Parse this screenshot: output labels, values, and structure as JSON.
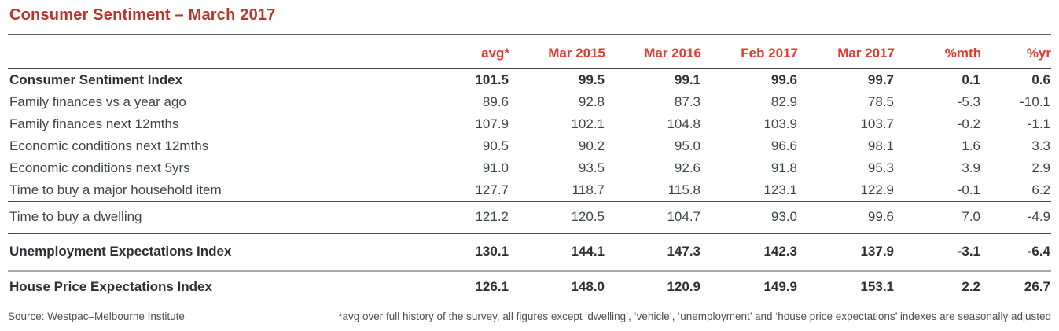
{
  "title": "Consumer Sentiment – March 2017",
  "table": {
    "column_headers": [
      "avg*",
      "Mar 2015",
      "Mar 2016",
      "Feb 2017",
      "Mar 2017",
      "%mth",
      "%yr"
    ],
    "groups": [
      {
        "divider_before": "none",
        "rows": [
          {
            "label": "Consumer Sentiment Index",
            "bold": true,
            "values": [
              "101.5",
              "99.5",
              "99.1",
              "99.6",
              "99.7",
              "0.1",
              "0.6"
            ]
          },
          {
            "label": "Family finances vs a year ago",
            "bold": false,
            "values": [
              "89.6",
              "92.8",
              "87.3",
              "82.9",
              "78.5",
              "-5.3",
              "-10.1"
            ]
          },
          {
            "label": "Family finances next 12mths",
            "bold": false,
            "values": [
              "107.9",
              "102.1",
              "104.8",
              "103.9",
              "103.7",
              "-0.2",
              "-1.1"
            ]
          },
          {
            "label": "Economic conditions next 12mths",
            "bold": false,
            "values": [
              "90.5",
              "90.2",
              "95.0",
              "96.6",
              "98.1",
              "1.6",
              "3.3"
            ]
          },
          {
            "label": "Economic conditions next 5yrs",
            "bold": false,
            "values": [
              "91.0",
              "93.5",
              "92.6",
              "91.8",
              "95.3",
              "3.9",
              "2.9"
            ]
          },
          {
            "label": "Time to buy a major household item",
            "bold": false,
            "values": [
              "127.7",
              "118.7",
              "115.8",
              "123.1",
              "122.9",
              "-0.1",
              "6.2"
            ]
          }
        ]
      },
      {
        "divider_before": "thin",
        "rows": [
          {
            "label": "Time to buy a dwelling",
            "bold": false,
            "values": [
              "121.2",
              "120.5",
              "104.7",
              "93.0",
              "99.6",
              "7.0",
              "-4.9"
            ]
          }
        ]
      },
      {
        "divider_before": "thin",
        "rows": [
          {
            "label": "Unemployment Expectations Index",
            "bold": true,
            "values": [
              "130.1",
              "144.1",
              "147.3",
              "142.3",
              "137.9",
              "-3.1",
              "-6.4"
            ]
          }
        ]
      },
      {
        "divider_before": "thick",
        "rows": [
          {
            "label": "House Price Expectations Index",
            "bold": true,
            "values": [
              "126.1",
              "148.0",
              "120.9",
              "149.9",
              "153.1",
              "2.2",
              "26.7"
            ]
          }
        ]
      }
    ]
  },
  "footer": {
    "source": "Source: Westpac–Melbourne Institute",
    "note": "*avg over full history of the survey, all figures except ‘dwelling’, ‘vehicle’, ‘unemployment’ and ‘house price expectations’ indexes are seasonally adjusted"
  },
  "colors": {
    "title_red": "#b5362c",
    "header_red": "#e23b2e",
    "body_text": "#3f4348",
    "bold_text": "#2c2f33",
    "rule_dark": "#45494d",
    "rule_gray": "#a7aaad"
  },
  "chart_data": {
    "type": "table",
    "title": "Consumer Sentiment – March 2017",
    "columns": [
      "avg*",
      "Mar 2015",
      "Mar 2016",
      "Feb 2017",
      "Mar 2017",
      "%mth",
      "%yr"
    ],
    "rows": [
      {
        "label": "Consumer Sentiment Index",
        "values": [
          101.5,
          99.5,
          99.1,
          99.6,
          99.7,
          0.1,
          0.6
        ]
      },
      {
        "label": "Family finances vs a year ago",
        "values": [
          89.6,
          92.8,
          87.3,
          82.9,
          78.5,
          -5.3,
          -10.1
        ]
      },
      {
        "label": "Family finances next 12mths",
        "values": [
          107.9,
          102.1,
          104.8,
          103.9,
          103.7,
          -0.2,
          -1.1
        ]
      },
      {
        "label": "Economic conditions next 12mths",
        "values": [
          90.5,
          90.2,
          95.0,
          96.6,
          98.1,
          1.6,
          3.3
        ]
      },
      {
        "label": "Economic conditions next 5yrs",
        "values": [
          91.0,
          93.5,
          92.6,
          91.8,
          95.3,
          3.9,
          2.9
        ]
      },
      {
        "label": "Time to buy a major household item",
        "values": [
          127.7,
          118.7,
          115.8,
          123.1,
          122.9,
          -0.1,
          6.2
        ]
      },
      {
        "label": "Time to buy a dwelling",
        "values": [
          121.2,
          120.5,
          104.7,
          93.0,
          99.6,
          7.0,
          -4.9
        ]
      },
      {
        "label": "Unemployment Expectations Index",
        "values": [
          130.1,
          144.1,
          147.3,
          142.3,
          137.9,
          -3.1,
          -6.4
        ]
      },
      {
        "label": "House Price Expectations Index",
        "values": [
          126.1,
          148.0,
          120.9,
          149.9,
          153.1,
          2.2,
          26.7
        ]
      }
    ],
    "source": "Source: Westpac–Melbourne Institute",
    "footnote": "*avg over full history of the survey, all figures except ‘dwelling’, ‘vehicle’, ‘unemployment’ and ‘house price expectations’ indexes are seasonally adjusted"
  }
}
